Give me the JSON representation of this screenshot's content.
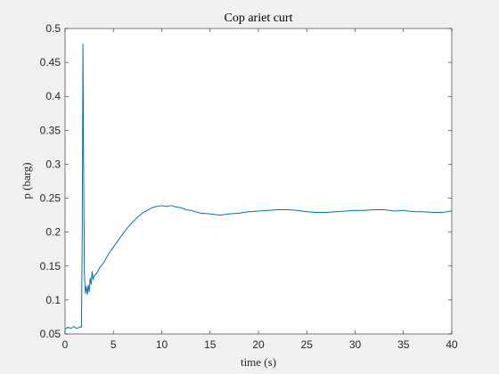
{
  "colors": {
    "background": "#f0f0f0",
    "axes_background": "#ffffff",
    "axes_color": "#262626",
    "series": "#0072bd"
  },
  "chart_data": {
    "type": "line",
    "title": "Cop ariet curt",
    "xlabel": "time (s)",
    "ylabel": "p (barg)",
    "xlim": [
      0,
      40
    ],
    "ylim": [
      0.05,
      0.5
    ],
    "grid": false,
    "legend": "none",
    "xticks": [
      0,
      5,
      10,
      15,
      20,
      25,
      30,
      35,
      40
    ],
    "yticks": [
      0.05,
      0.1,
      0.15,
      0.2,
      0.25,
      0.3,
      0.35,
      0.4,
      0.45,
      0.5
    ],
    "xtick_labels": [
      "0",
      "5",
      "10",
      "15",
      "20",
      "25",
      "30",
      "35",
      "40"
    ],
    "ytick_labels": [
      "0.05",
      "0.1",
      "0.15",
      "0.2",
      "0.25",
      "0.3",
      "0.35",
      "0.4",
      "0.45",
      "0.5"
    ],
    "series": [
      {
        "x": [
          0,
          0.3,
          0.6,
          0.9,
          1.2,
          1.5,
          1.7,
          1.78,
          1.85,
          1.92,
          2.0,
          2.1,
          2.2,
          2.3,
          2.4,
          2.5,
          2.6,
          2.7,
          2.8,
          2.9,
          3.0,
          3.3,
          3.6,
          4.0,
          4.5,
          5.0,
          5.5,
          6.0,
          6.5,
          7.0,
          7.5,
          8.0,
          8.5,
          9.0,
          9.5,
          10.0,
          10.5,
          11.0,
          11.5,
          12.0,
          12.5,
          13.0,
          13.5,
          14.0,
          15.0,
          16.0,
          16.5,
          17.0,
          18.0,
          19.0,
          20.0,
          21.0,
          22.0,
          23.0,
          24.0,
          25.0,
          26.0,
          27.0,
          28.0,
          29.0,
          30.0,
          31.0,
          32.0,
          33.0,
          34.0,
          35.0,
          36.0,
          37.0,
          38.0,
          39.0,
          40.0
        ],
        "y": [
          0.057,
          0.06,
          0.058,
          0.061,
          0.058,
          0.06,
          0.06,
          0.2,
          0.477,
          0.3,
          0.14,
          0.11,
          0.12,
          0.108,
          0.122,
          0.112,
          0.132,
          0.123,
          0.142,
          0.13,
          0.135,
          0.14,
          0.148,
          0.155,
          0.168,
          0.178,
          0.188,
          0.198,
          0.207,
          0.215,
          0.222,
          0.228,
          0.232,
          0.236,
          0.238,
          0.239,
          0.238,
          0.239,
          0.237,
          0.236,
          0.233,
          0.232,
          0.23,
          0.228,
          0.227,
          0.225,
          0.226,
          0.227,
          0.228,
          0.23,
          0.231,
          0.232,
          0.233,
          0.233,
          0.232,
          0.23,
          0.229,
          0.229,
          0.23,
          0.231,
          0.232,
          0.232,
          0.233,
          0.233,
          0.231,
          0.232,
          0.23,
          0.23,
          0.229,
          0.229,
          0.231
        ]
      }
    ]
  }
}
